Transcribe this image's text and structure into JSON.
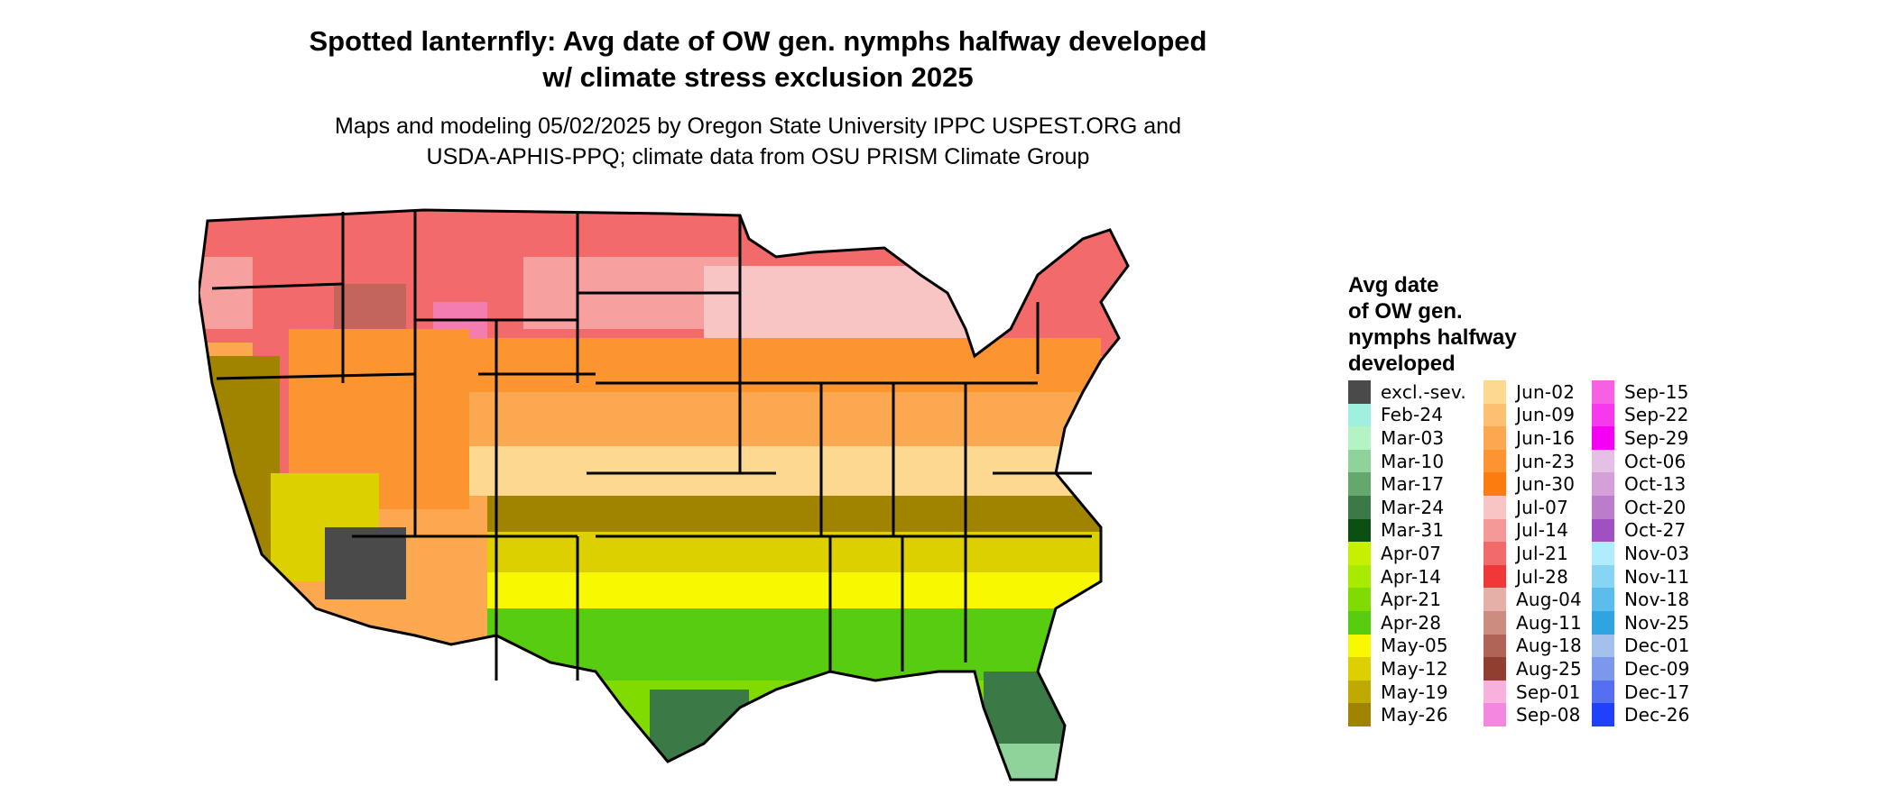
{
  "title_line1": "Spotted lanternfly: Avg date of OW gen. nymphs halfway developed",
  "title_line2": "w/ climate stress exclusion 2025",
  "subtitle_line1": "Maps and modeling 05/02/2025 by Oregon State University IPPC USPEST.ORG and",
  "subtitle_line2": "USDA-APHIS-PPQ; climate data from OSU PRISM Climate Group",
  "legend": {
    "title_lines": [
      "Avg date",
      "of OW gen.",
      "nymphs halfway",
      "developed"
    ],
    "columns": [
      [
        {
          "label": "excl.-sev.",
          "color": "#4a4a4a"
        },
        {
          "label": "Feb-24",
          "color": "#a0f0e0"
        },
        {
          "label": "Mar-03",
          "color": "#b4f4c4"
        },
        {
          "label": "Mar-10",
          "color": "#8fd39a"
        },
        {
          "label": "Mar-17",
          "color": "#64a86e"
        },
        {
          "label": "Mar-24",
          "color": "#3b7a47"
        },
        {
          "label": "Mar-31",
          "color": "#0c4f12"
        },
        {
          "label": "Apr-07",
          "color": "#c6f000"
        },
        {
          "label": "Apr-14",
          "color": "#a8ea00"
        },
        {
          "label": "Apr-21",
          "color": "#80dc00"
        },
        {
          "label": "Apr-28",
          "color": "#58cc10"
        },
        {
          "label": "May-05",
          "color": "#f8f800"
        },
        {
          "label": "May-12",
          "color": "#dcd000"
        },
        {
          "label": "May-19",
          "color": "#c0aa00"
        },
        {
          "label": "May-26",
          "color": "#a08400"
        }
      ],
      [
        {
          "label": "Jun-02",
          "color": "#fcd890"
        },
        {
          "label": "Jun-09",
          "color": "#fcc070"
        },
        {
          "label": "Jun-16",
          "color": "#fca850"
        },
        {
          "label": "Jun-23",
          "color": "#fc9430"
        },
        {
          "label": "Jun-30",
          "color": "#fc7c10"
        },
        {
          "label": "Jul-07",
          "color": "#f8c4c4"
        },
        {
          "label": "Jul-14",
          "color": "#f49898"
        },
        {
          "label": "Jul-21",
          "color": "#f26a6a"
        },
        {
          "label": "Jul-28",
          "color": "#f03838"
        },
        {
          "label": "Aug-04",
          "color": "#e4b0a8"
        },
        {
          "label": "Aug-11",
          "color": "#cc8c80"
        },
        {
          "label": "Aug-18",
          "color": "#b06458"
        },
        {
          "label": "Aug-25",
          "color": "#903e30"
        },
        {
          "label": "Sep-01",
          "color": "#f8b0dc"
        },
        {
          "label": "Sep-08",
          "color": "#f488e0"
        }
      ],
      [
        {
          "label": "Sep-15",
          "color": "#f860e4"
        },
        {
          "label": "Sep-22",
          "color": "#f838ec"
        },
        {
          "label": "Sep-29",
          "color": "#f400f4"
        },
        {
          "label": "Oct-06",
          "color": "#e4c0e4"
        },
        {
          "label": "Oct-13",
          "color": "#d4a0d8"
        },
        {
          "label": "Oct-20",
          "color": "#bc7ccc"
        },
        {
          "label": "Oct-27",
          "color": "#a050c0"
        },
        {
          "label": "Nov-03",
          "color": "#b0ecfc"
        },
        {
          "label": "Nov-11",
          "color": "#88d4f4"
        },
        {
          "label": "Nov-18",
          "color": "#5cbcec"
        },
        {
          "label": "Nov-25",
          "color": "#30a4e0"
        },
        {
          "label": "Dec-01",
          "color": "#a4c0ec"
        },
        {
          "label": "Dec-09",
          "color": "#7c98ec"
        },
        {
          "label": "Dec-17",
          "color": "#5470f0"
        },
        {
          "label": "Dec-26",
          "color": "#2040fc"
        }
      ]
    ]
  },
  "map_colors": {
    "border": "#000000",
    "excluded": "#4a4a4a",
    "north": "#f26a6a",
    "north_light": "#f8c4c4",
    "mountain_brown": "#b06458",
    "mountain_pink": "#f488e0",
    "central": "#fca850",
    "central_dark": "#fc9430",
    "south_olive": "#a08400",
    "south_yellow": "#f8f800",
    "south_green": "#58cc10",
    "gulf_green": "#3b7a47"
  }
}
